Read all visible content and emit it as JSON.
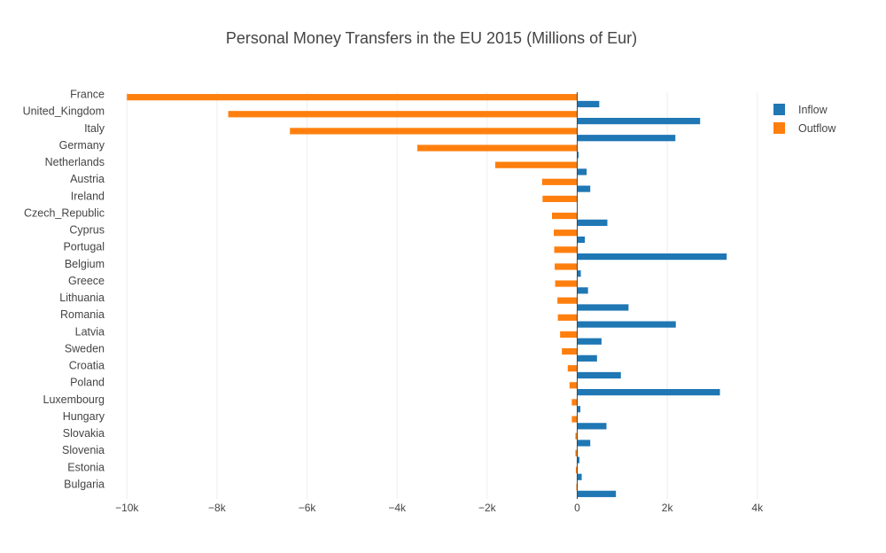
{
  "chart_data": {
    "type": "bar",
    "orientation": "horizontal",
    "title": "Personal Money Transfers in the EU 2015 (Millions of Eur)",
    "categories": [
      "France",
      "United_Kingdom",
      "Italy",
      "Germany",
      "Netherlands",
      "Austria",
      "Ireland",
      "Czech_Republic",
      "Cyprus",
      "Portugal",
      "Belgium",
      "Greece",
      "Lithuania",
      "Romania",
      "Latvia",
      "Sweden",
      "Croatia",
      "Poland",
      "Luxembourg",
      "Hungary",
      "Slovakia",
      "Slovenia",
      "Estonia",
      "Bulgaria"
    ],
    "series": [
      {
        "name": "Inflow",
        "color": "#1f77b4",
        "values": [
          490,
          2730,
          2180,
          30,
          210,
          290,
          0,
          670,
          170,
          3320,
          80,
          240,
          1140,
          2190,
          540,
          440,
          970,
          3170,
          70,
          650,
          290,
          50,
          100,
          860
        ]
      },
      {
        "name": "Outflow",
        "color": "#ff7f0e",
        "values": [
          -10000,
          -7750,
          -6380,
          -3550,
          -1820,
          -780,
          -770,
          -560,
          -520,
          -510,
          -500,
          -490,
          -440,
          -430,
          -380,
          -340,
          -210,
          -170,
          -120,
          -120,
          -40,
          -40,
          -30,
          -20
        ]
      }
    ],
    "xlim": [
      -10300,
      4300
    ],
    "xticks": [
      -10000,
      -8000,
      -6000,
      -4000,
      -2000,
      0,
      2000,
      4000
    ],
    "xtick_labels": [
      "−10k",
      "−8k",
      "−6k",
      "−4k",
      "−2k",
      "0",
      "2k",
      "4k"
    ],
    "xlabel": "",
    "ylabel": "",
    "grid": true,
    "legend": "top-right"
  }
}
